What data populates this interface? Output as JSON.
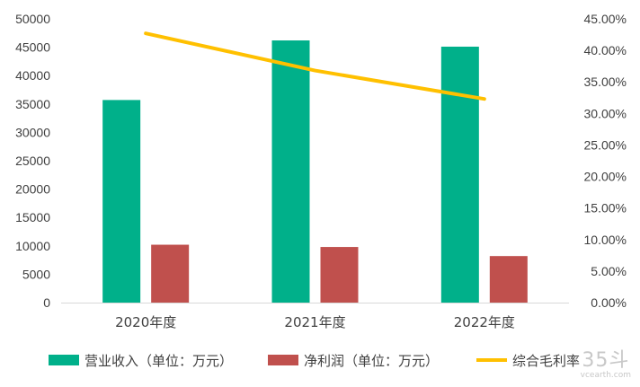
{
  "chart_data": {
    "type": "bar",
    "categories": [
      "2020年度",
      "2021年度",
      "2022年度"
    ],
    "series": [
      {
        "name": "营业收入（单位：万元）",
        "type": "bar",
        "axis": "left",
        "color": "#00B08A",
        "values": [
          35700,
          46200,
          45100
        ]
      },
      {
        "name": "净利润（单位：万元）",
        "type": "bar",
        "axis": "left",
        "color": "#C0504D",
        "values": [
          10200,
          9800,
          8200
        ]
      },
      {
        "name": "综合毛利率",
        "type": "line",
        "axis": "right",
        "color": "#FFC000",
        "values": [
          42.7,
          36.8,
          32.3
        ]
      }
    ],
    "y_left": {
      "ylim": [
        0,
        50000
      ],
      "tick_labels": [
        "0",
        "5000",
        "10000",
        "15000",
        "20000",
        "25000",
        "30000",
        "35000",
        "40000",
        "45000",
        "50000"
      ]
    },
    "y_right": {
      "ylim": [
        0,
        45
      ],
      "tick_labels": [
        "0.00%",
        "5.00%",
        "10.00%",
        "15.00%",
        "20.00%",
        "25.00%",
        "30.00%",
        "35.00%",
        "40.00%",
        "45.00%"
      ]
    },
    "legend": "bottom",
    "grid": false
  },
  "watermark": {
    "logo": "35斗",
    "url": "vcearth.com"
  }
}
